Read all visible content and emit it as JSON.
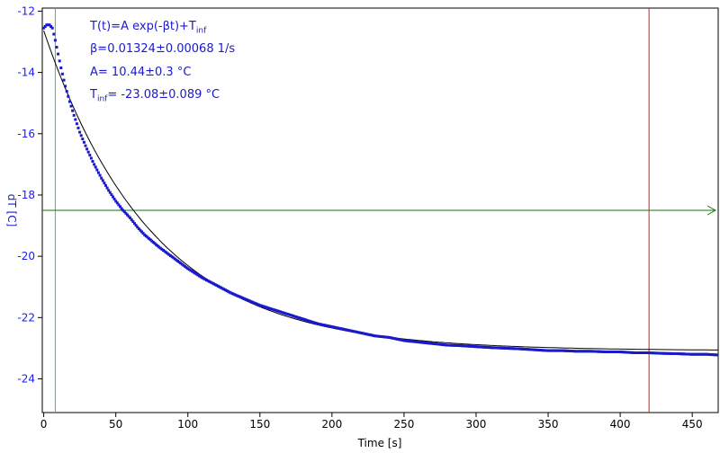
{
  "chart_data": {
    "type": "scatter",
    "xlabel": "Time [s]",
    "ylabel": "dT [C]",
    "xlim": [
      -1,
      468
    ],
    "ylim": [
      -25.1,
      -11.9
    ],
    "xticks": [
      0,
      50,
      100,
      150,
      200,
      250,
      300,
      350,
      400,
      450
    ],
    "yticks": [
      -12,
      -14,
      -16,
      -18,
      -20,
      -22,
      -24
    ],
    "grid": false,
    "annotations": {
      "eq_prefix": "T(t)=A exp(-βt)+T",
      "eq_sub": "inf",
      "beta": "β=0.01324±0.00068 1/s",
      "amp": "A= 10.44±0.3 °C",
      "tinf_prefix": "T",
      "tinf_sub": "inf",
      "tinf_value": "= -23.08±0.089 °C"
    },
    "series": [
      {
        "kind": "measured",
        "color": "#1a1acc",
        "x": [
          0,
          2,
          4,
          6,
          8,
          10,
          12,
          15,
          18,
          21,
          25,
          30,
          35,
          40,
          45,
          50,
          55,
          60,
          65,
          70,
          80,
          90,
          100,
          110,
          120,
          130,
          140,
          150,
          160,
          170,
          180,
          190,
          200,
          210,
          220,
          230,
          240,
          250,
          260,
          270,
          280,
          290,
          300,
          310,
          320,
          330,
          340,
          350,
          360,
          370,
          380,
          390,
          400,
          410,
          420,
          430,
          440,
          450,
          460,
          467
        ],
        "y": [
          -12.55,
          -12.45,
          -12.45,
          -12.55,
          -12.95,
          -13.4,
          -13.85,
          -14.45,
          -14.95,
          -15.4,
          -15.95,
          -16.5,
          -17.0,
          -17.45,
          -17.85,
          -18.2,
          -18.5,
          -18.75,
          -19.05,
          -19.3,
          -19.7,
          -20.05,
          -20.4,
          -20.7,
          -20.95,
          -21.2,
          -21.4,
          -21.6,
          -21.75,
          -21.9,
          -22.05,
          -22.2,
          -22.3,
          -22.4,
          -22.5,
          -22.6,
          -22.65,
          -22.75,
          -22.8,
          -22.85,
          -22.9,
          -22.92,
          -22.95,
          -22.98,
          -23.0,
          -23.02,
          -23.05,
          -23.08,
          -23.08,
          -23.1,
          -23.1,
          -23.12,
          -23.12,
          -23.15,
          -23.15,
          -23.17,
          -23.18,
          -23.2,
          -23.2,
          -23.22
        ]
      },
      {
        "kind": "fit",
        "color": "#000000",
        "A": 10.44,
        "beta": 0.01324,
        "tinf": -23.08
      }
    ],
    "vlines": [
      {
        "x": 8,
        "color": "#33cc33"
      },
      {
        "x": 420,
        "color": "#cc2222"
      }
    ],
    "hline": {
      "y": -18.5,
      "color": "#117711"
    }
  }
}
